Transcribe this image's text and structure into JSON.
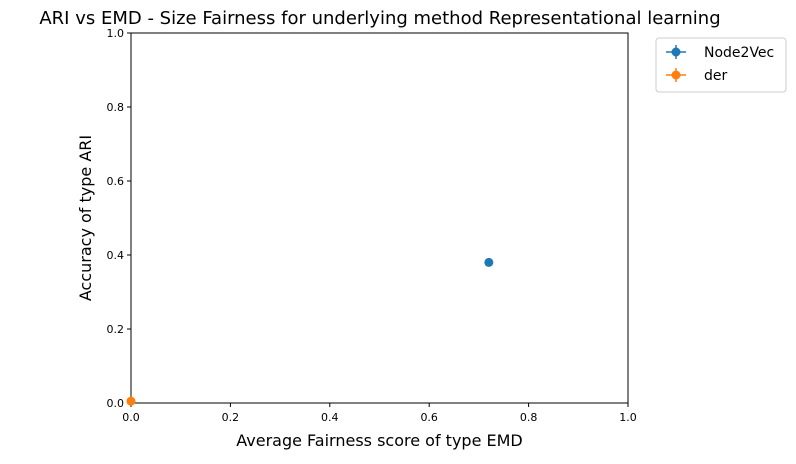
{
  "chart_data": {
    "type": "scatter",
    "title": "ARI vs EMD - Size Fairness for underlying method Representational learning",
    "xlabel": "Average Fairness score of type EMD",
    "ylabel": "Accuracy of type ARI",
    "xlim": [
      0.0,
      1.0
    ],
    "ylim": [
      0.0,
      1.0
    ],
    "xticks": [
      "0.0",
      "0.2",
      "0.4",
      "0.6",
      "0.8",
      "1.0"
    ],
    "yticks": [
      "0.0",
      "0.2",
      "0.4",
      "0.6",
      "0.8",
      "1.0"
    ],
    "grid": false,
    "legend_position": "outside top-right",
    "series": [
      {
        "name": "Node2Vec",
        "color": "#1f77b4",
        "points": [
          {
            "x": 0.72,
            "y": 0.38
          }
        ]
      },
      {
        "name": "der",
        "color": "#ff7f0e",
        "points": [
          {
            "x": 0.0,
            "y": 0.005
          }
        ]
      }
    ]
  }
}
